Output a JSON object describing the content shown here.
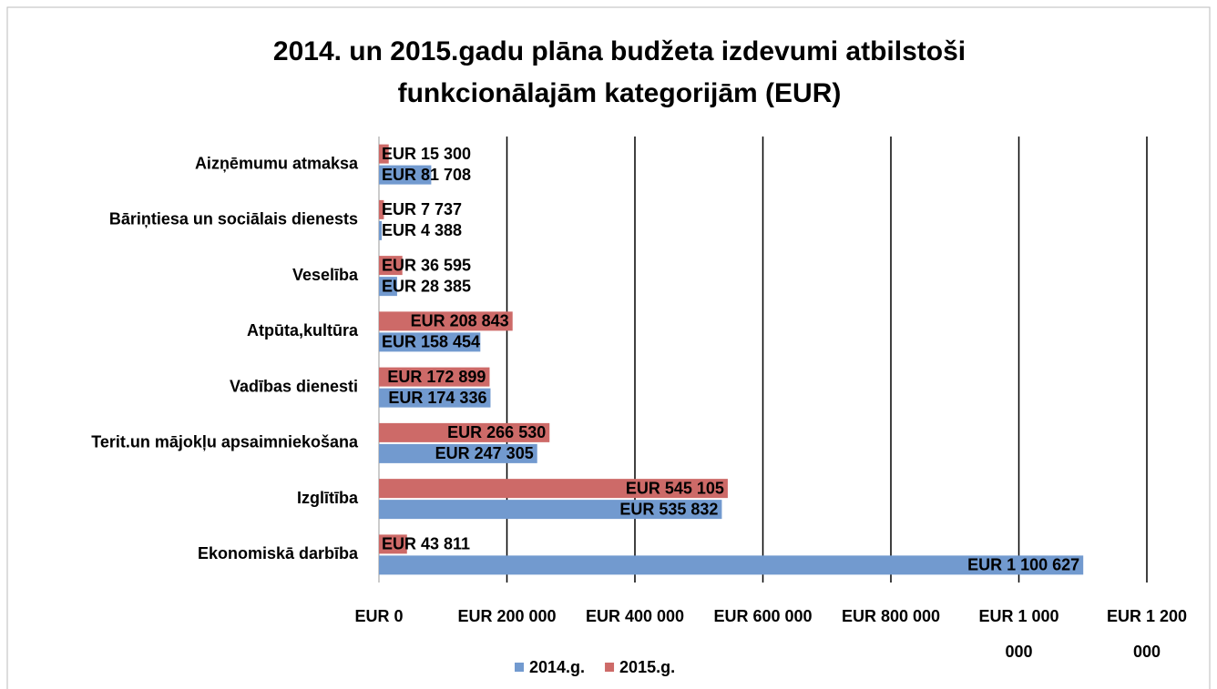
{
  "chart_data": {
    "type": "hbar",
    "title": "2014. un 2015.gadu plāna budžeta izdevumi atbilstoši funkcionālajām kategorijām (EUR)",
    "categories": [
      "Aizņēmumu atmaksa",
      "Bāriņtiesa un sociālais dienests",
      "Veselība",
      "Atpūta,kultūra",
      "Vadības dienesti",
      "Terit.un mājokļu apsaimniekošana",
      "Izglītība",
      "Ekonomiskā darbība"
    ],
    "series": [
      {
        "name": "2015.g.",
        "color": "#cd6a68",
        "values": [
          15300,
          7737,
          36595,
          208843,
          172899,
          266530,
          545105,
          43811
        ],
        "value_labels": [
          "EUR 15 300",
          "EUR 7 737",
          "EUR 36 595",
          "EUR 208 843",
          "EUR 172 899",
          "EUR 266 530",
          "EUR 545 105",
          "EUR 43 811"
        ]
      },
      {
        "name": "2014.g.",
        "color": "#729acf",
        "values": [
          81708,
          4388,
          28385,
          158454,
          174336,
          247305,
          535832,
          1100627
        ],
        "value_labels": [
          "EUR 81 708",
          "EUR 4 388",
          "EUR 28 385",
          "EUR 158 454",
          "EUR 174 336",
          "EUR 247 305",
          "EUR 535 832",
          "EUR 1 100 627"
        ]
      }
    ],
    "xlim": [
      0,
      1200000
    ],
    "xticks": [
      {
        "value": 0,
        "label": "EUR 0"
      },
      {
        "value": 200000,
        "label": "EUR 200 000"
      },
      {
        "value": 400000,
        "label": "EUR 400 000"
      },
      {
        "value": 600000,
        "label": "EUR 600 000"
      },
      {
        "value": 800000,
        "label": "EUR 800 000"
      },
      {
        "value": 1000000,
        "label": "EUR 1 000 000"
      },
      {
        "value": 1200000,
        "label": "EUR 1 200 000"
      }
    ],
    "grid": true,
    "legend": "bottom"
  }
}
